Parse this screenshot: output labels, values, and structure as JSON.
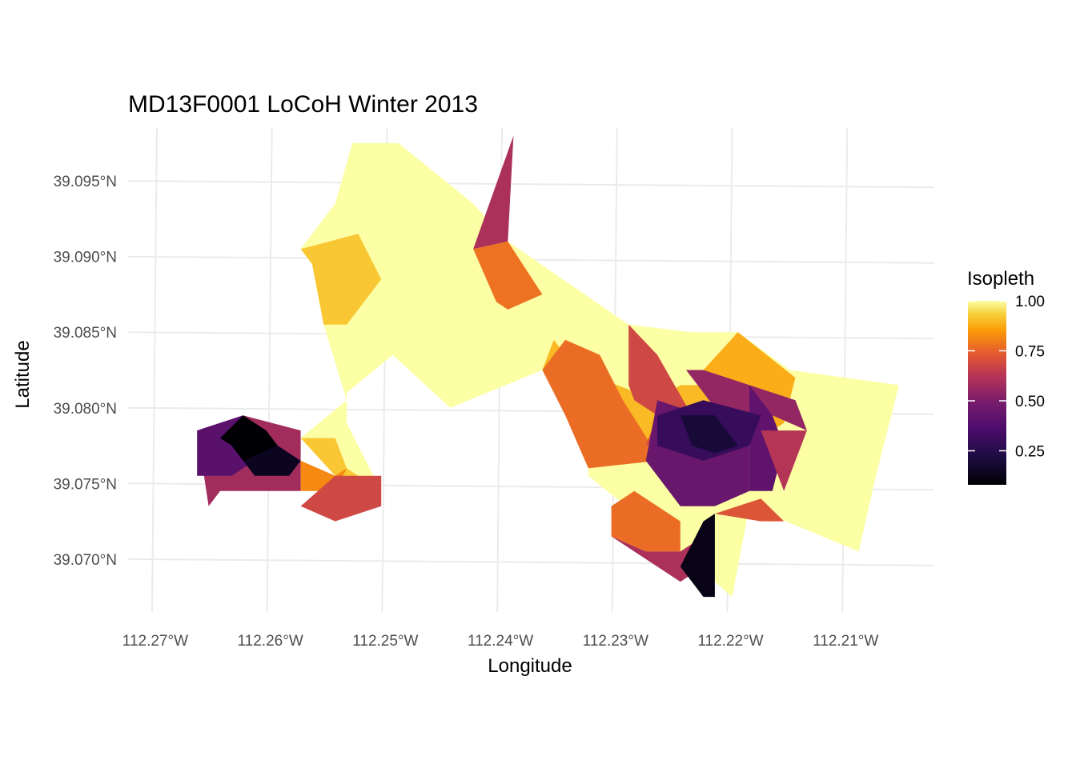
{
  "chart_data": {
    "type": "heatmap",
    "title": "MD13F0001 LoCoH Winter 2013",
    "xlabel": "Longitude",
    "ylabel": "Latitude",
    "x_ticks": [
      {
        "value": -112.27,
        "label": "112.27°W"
      },
      {
        "value": -112.26,
        "label": "112.26°W"
      },
      {
        "value": -112.25,
        "label": "112.25°W"
      },
      {
        "value": -112.24,
        "label": "112.24°W"
      },
      {
        "value": -112.23,
        "label": "112.23°W"
      },
      {
        "value": -112.22,
        "label": "112.22°W"
      },
      {
        "value": -112.21,
        "label": "112.21°W"
      }
    ],
    "y_ticks": [
      {
        "value": 39.095,
        "label": "39.095°N"
      },
      {
        "value": 39.09,
        "label": "39.090°N"
      },
      {
        "value": 39.085,
        "label": "39.085°N"
      },
      {
        "value": 39.08,
        "label": "39.080°N"
      },
      {
        "value": 39.075,
        "label": "39.075°N"
      },
      {
        "value": 39.07,
        "label": "39.070°N"
      }
    ],
    "xlim": [
      -112.2725,
      -112.2025
    ],
    "ylim": [
      39.0665,
      39.0985
    ],
    "grid": true,
    "legend": {
      "title": "Isopleth",
      "position": "right",
      "range": [
        0.08,
        1.0
      ],
      "ticks": [
        {
          "value": 1.0,
          "label": "1.00"
        },
        {
          "value": 0.75,
          "label": "0.75"
        },
        {
          "value": 0.5,
          "label": "0.50"
        },
        {
          "value": 0.25,
          "label": "0.25"
        }
      ]
    },
    "colors": {
      "scale": [
        "#000004",
        "#320a5e",
        "#781b6c",
        "#bb3754",
        "#ec6824",
        "#fbb41a",
        "#fcffa4"
      ]
    },
    "polygons": [
      {
        "isopleth": 1.0,
        "coords": [
          [
            -112.253,
            39.0975
          ],
          [
            -112.249,
            39.0975
          ],
          [
            -112.2425,
            39.0935
          ],
          [
            -112.2395,
            39.091
          ],
          [
            -112.229,
            39.0855
          ],
          [
            -112.2235,
            39.085
          ],
          [
            -112.2195,
            39.085
          ],
          [
            -112.215,
            39.0825
          ],
          [
            -112.2055,
            39.0815
          ],
          [
            -112.2075,
            39.0755
          ],
          [
            -112.209,
            39.0705
          ],
          [
            -112.2185,
            39.0735
          ],
          [
            -112.22,
            39.0675
          ],
          [
            -112.226,
            39.0715
          ],
          [
            -112.2325,
            39.0755
          ],
          [
            -112.2325,
            39.078
          ],
          [
            -112.2365,
            39.0825
          ],
          [
            -112.2445,
            39.08
          ],
          [
            -112.2495,
            39.0835
          ],
          [
            -112.2535,
            39.081
          ],
          [
            -112.2535,
            39.079
          ],
          [
            -112.2505,
            39.0745
          ],
          [
            -112.2535,
            39.076
          ],
          [
            -112.2545,
            39.078
          ],
          [
            -112.2575,
            39.078
          ],
          [
            -112.2535,
            39.0805
          ],
          [
            -112.2555,
            39.0855
          ],
          [
            -112.2565,
            39.0895
          ],
          [
            -112.2575,
            39.0905
          ],
          [
            -112.2545,
            39.0935
          ]
        ]
      },
      {
        "isopleth": 0.92,
        "coords": [
          [
            -112.2575,
            39.0905
          ],
          [
            -112.2525,
            39.0915
          ],
          [
            -112.2505,
            39.0885
          ],
          [
            -112.2535,
            39.0855
          ],
          [
            -112.2555,
            39.0855
          ],
          [
            -112.2565,
            39.0895
          ]
        ]
      },
      {
        "isopleth": 0.88,
        "coords": [
          [
            -112.2195,
            39.085
          ],
          [
            -112.2145,
            39.082
          ],
          [
            -112.2155,
            39.079
          ],
          [
            -112.2165,
            39.0785
          ],
          [
            -112.2225,
            39.0795
          ],
          [
            -112.2225,
            39.0825
          ]
        ]
      },
      {
        "isopleth": 0.9,
        "coords": [
          [
            -112.2355,
            39.0845
          ],
          [
            -112.2335,
            39.0825
          ],
          [
            -112.2265,
            39.0805
          ],
          [
            -112.2245,
            39.0815
          ],
          [
            -112.222,
            39.0815
          ],
          [
            -112.2195,
            39.081
          ],
          [
            -112.2265,
            39.0775
          ],
          [
            -112.2325,
            39.078
          ],
          [
            -112.2365,
            39.0825
          ]
        ]
      },
      {
        "isopleth": 0.92,
        "coords": [
          [
            -112.2575,
            39.078
          ],
          [
            -112.2545,
            39.078
          ],
          [
            -112.2535,
            39.076
          ],
          [
            -112.2505,
            39.0745
          ],
          [
            -112.2545,
            39.0755
          ]
        ]
      },
      {
        "isopleth": 0.78,
        "coords": [
          [
            -112.2425,
            39.0905
          ],
          [
            -112.2395,
            39.091
          ],
          [
            -112.2365,
            39.0875
          ],
          [
            -112.2395,
            39.0865
          ],
          [
            -112.2405,
            39.087
          ]
        ]
      },
      {
        "isopleth": 0.6,
        "coords": [
          [
            -112.2425,
            39.0905
          ],
          [
            -112.239,
            39.098
          ],
          [
            -112.2395,
            39.091
          ]
        ]
      },
      {
        "isopleth": 0.77,
        "coords": [
          [
            -112.2365,
            39.0825
          ],
          [
            -112.2345,
            39.0845
          ],
          [
            -112.2315,
            39.0835
          ],
          [
            -112.2295,
            39.0805
          ],
          [
            -112.227,
            39.0775
          ],
          [
            -112.2265,
            39.0765
          ],
          [
            -112.2325,
            39.076
          ],
          [
            -112.2345,
            39.0795
          ]
        ]
      },
      {
        "isopleth": 0.68,
        "coords": [
          [
            -112.229,
            39.0855
          ],
          [
            -112.2265,
            39.0835
          ],
          [
            -112.225,
            39.0815
          ],
          [
            -112.2235,
            39.0795
          ],
          [
            -112.2275,
            39.0775
          ],
          [
            -112.2265,
            39.0795
          ],
          [
            -112.2285,
            39.0805
          ],
          [
            -112.229,
            39.0815
          ]
        ]
      },
      {
        "isopleth": 0.77,
        "coords": [
          [
            -112.2305,
            39.0735
          ],
          [
            -112.2285,
            39.0745
          ],
          [
            -112.2245,
            39.0725
          ],
          [
            -112.2245,
            39.0705
          ],
          [
            -112.2275,
            39.0705
          ],
          [
            -112.2305,
            39.0715
          ]
        ]
      },
      {
        "isopleth": 0.6,
        "coords": [
          [
            -112.2305,
            39.0715
          ],
          [
            -112.2275,
            39.0705
          ],
          [
            -112.2245,
            39.0705
          ],
          [
            -112.2225,
            39.0715
          ],
          [
            -112.2225,
            39.0695
          ],
          [
            -112.2245,
            39.0685
          ],
          [
            -112.2225,
            39.0675
          ]
        ]
      },
      {
        "isopleth": 0.12,
        "coords": [
          [
            -112.2245,
            39.0695
          ],
          [
            -112.2225,
            39.0675
          ],
          [
            -112.2215,
            39.0675
          ],
          [
            -112.2215,
            39.073
          ],
          [
            -112.2225,
            39.0725
          ]
        ]
      },
      {
        "isopleth": 0.72,
        "coords": [
          [
            -112.2175,
            39.0725
          ],
          [
            -112.2155,
            39.0725
          ],
          [
            -112.2175,
            39.074
          ],
          [
            -112.2215,
            39.073
          ]
        ]
      },
      {
        "isopleth": 0.55,
        "coords": [
          [
            -112.224,
            39.0825
          ],
          [
            -112.2225,
            39.0825
          ],
          [
            -112.2185,
            39.0815
          ],
          [
            -112.2145,
            39.0805
          ],
          [
            -112.2135,
            39.0785
          ],
          [
            -112.2165,
            39.0795
          ],
          [
            -112.221,
            39.0795
          ]
        ]
      },
      {
        "isopleth": 0.45,
        "coords": [
          [
            -112.2265,
            39.0805
          ],
          [
            -112.2225,
            39.0795
          ],
          [
            -112.2185,
            39.0775
          ],
          [
            -112.2185,
            39.0745
          ],
          [
            -112.2215,
            39.0735
          ],
          [
            -112.2245,
            39.0735
          ],
          [
            -112.2275,
            39.0765
          ]
        ]
      },
      {
        "isopleth": 0.42,
        "coords": [
          [
            -112.2185,
            39.0815
          ],
          [
            -112.2165,
            39.0795
          ],
          [
            -112.2155,
            39.0775
          ],
          [
            -112.2165,
            39.0745
          ],
          [
            -112.2185,
            39.0745
          ]
        ]
      },
      {
        "isopleth": 0.3,
        "coords": [
          [
            -112.2265,
            39.0795
          ],
          [
            -112.2225,
            39.0805
          ],
          [
            -112.2175,
            39.0795
          ],
          [
            -112.2185,
            39.0775
          ],
          [
            -112.2225,
            39.0765
          ],
          [
            -112.2265,
            39.0775
          ]
        ]
      },
      {
        "isopleth": 0.2,
        "coords": [
          [
            -112.2245,
            39.0795
          ],
          [
            -112.2215,
            39.0795
          ],
          [
            -112.2195,
            39.0775
          ],
          [
            -112.2215,
            39.077
          ],
          [
            -112.2235,
            39.0775
          ]
        ]
      },
      {
        "isopleth": 0.62,
        "coords": [
          [
            -112.2175,
            39.0785
          ],
          [
            -112.2135,
            39.0785
          ],
          [
            -112.2145,
            39.0765
          ],
          [
            -112.2155,
            39.0745
          ],
          [
            -112.2165,
            39.0765
          ]
        ]
      },
      {
        "isopleth": 0.58,
        "coords": [
          [
            -112.2655,
            39.0735
          ],
          [
            -112.2645,
            39.0745
          ],
          [
            -112.2605,
            39.0745
          ],
          [
            -112.2575,
            39.0745
          ],
          [
            -112.2575,
            39.0785
          ],
          [
            -112.2625,
            39.0795
          ],
          [
            -112.2665,
            39.0785
          ]
        ]
      },
      {
        "isopleth": 0.4,
        "coords": [
          [
            -112.2665,
            39.0785
          ],
          [
            -112.2625,
            39.0795
          ],
          [
            -112.2595,
            39.0775
          ],
          [
            -112.2635,
            39.0755
          ],
          [
            -112.2665,
            39.0755
          ]
        ]
      },
      {
        "isopleth": 0.06,
        "coords": [
          [
            -112.2625,
            39.0795
          ],
          [
            -112.2605,
            39.0785
          ],
          [
            -112.2595,
            39.0775
          ],
          [
            -112.2605,
            39.0765
          ],
          [
            -112.2625,
            39.0765
          ],
          [
            -112.2635,
            39.0775
          ],
          [
            -112.2645,
            39.078
          ]
        ]
      },
      {
        "isopleth": 0.14,
        "coords": [
          [
            -112.2595,
            39.0775
          ],
          [
            -112.2575,
            39.0765
          ],
          [
            -112.2585,
            39.0755
          ],
          [
            -112.2615,
            39.0755
          ],
          [
            -112.2625,
            39.0765
          ]
        ]
      },
      {
        "isopleth": 0.82,
        "coords": [
          [
            -112.2575,
            39.0765
          ],
          [
            -112.2545,
            39.0755
          ],
          [
            -112.2535,
            39.076
          ],
          [
            -112.2545,
            39.0745
          ],
          [
            -112.2575,
            39.0745
          ]
        ]
      },
      {
        "isopleth": 0.68,
        "coords": [
          [
            -112.2545,
            39.0755
          ],
          [
            -112.2505,
            39.0755
          ],
          [
            -112.2505,
            39.0735
          ],
          [
            -112.2545,
            39.0725
          ],
          [
            -112.2575,
            39.0735
          ]
        ]
      }
    ]
  }
}
